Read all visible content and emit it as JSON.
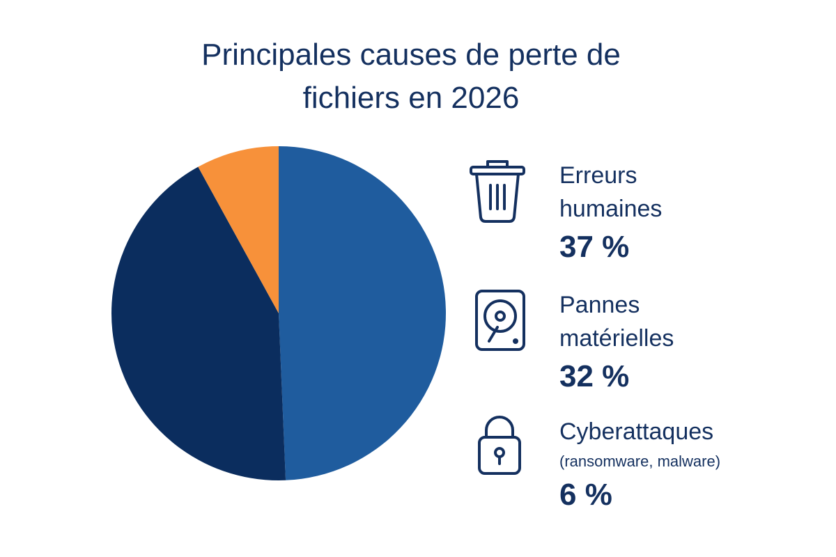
{
  "chart_data": {
    "type": "pie",
    "title": "Principales causes de perte de fichiers en 2026",
    "categories": [
      "Erreurs humaines",
      "Pannes matérielles",
      "Cyberattaques"
    ],
    "annotation": "(ransomware, malware)",
    "values": [
      37,
      32,
      6
    ],
    "value_labels": [
      "37 %",
      "32 %",
      "6 %"
    ],
    "colors": [
      "#1f5c9e",
      "#0b2d5e",
      "#f7913a"
    ]
  }
}
